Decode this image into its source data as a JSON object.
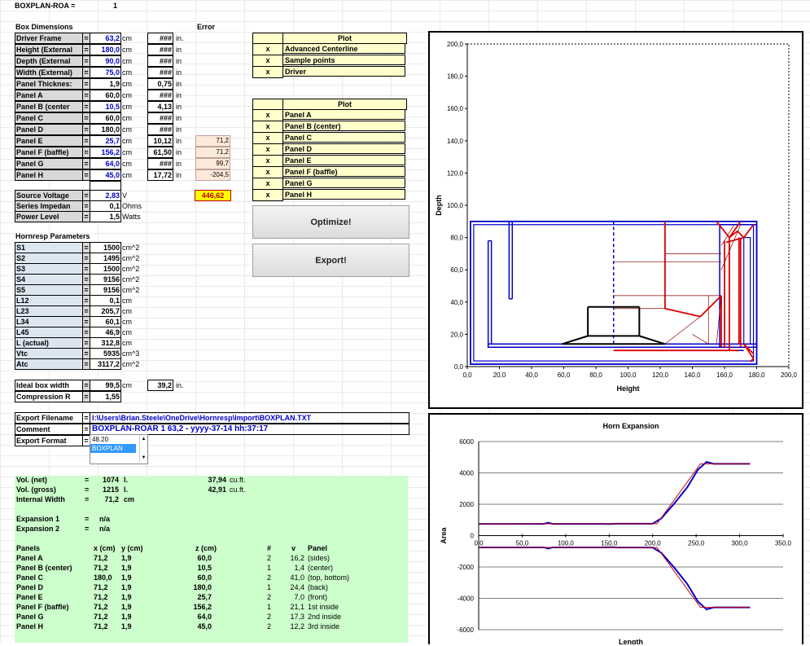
{
  "top": {
    "label": "BOXPLAN-ROA =",
    "value": "1"
  },
  "box_dims_title": "Box Dimensions",
  "error_title": "Error",
  "rows": [
    {
      "label": "Driver Frame",
      "value": "63,2",
      "unit": "cm",
      "err": "###",
      "unit2": "in.",
      "pink": ""
    },
    {
      "label": "Height (External",
      "value": "180,0",
      "unit": "cm",
      "err": "###",
      "unit2": "in",
      "pink": ""
    },
    {
      "label": "Depth (External",
      "value": "90,0",
      "unit": "cm",
      "err": "###",
      "unit2": "in",
      "pink": ""
    },
    {
      "label": "Width (External)",
      "value": "75,0",
      "unit": "cm",
      "err": "###",
      "unit2": "in",
      "pink": ""
    },
    {
      "label": "Panel Thicknes:",
      "value": "1,9",
      "unit": "cm",
      "err": "0,75",
      "unit2": "in",
      "pink": ""
    },
    {
      "label": "Panel A",
      "value": "60,0",
      "unit": "cm",
      "err": "###",
      "unit2": "in",
      "pink": ""
    },
    {
      "label": "Panel B (center",
      "value": "10,5",
      "unit": "cm",
      "err": "4,13",
      "unit2": "in",
      "pink": ""
    },
    {
      "label": "Panel C",
      "value": "60,0",
      "unit": "cm",
      "err": "###",
      "unit2": "in",
      "pink": ""
    },
    {
      "label": "Panel D",
      "value": "180,0",
      "unit": "cm",
      "err": "###",
      "unit2": "in",
      "pink": ""
    },
    {
      "label": "Panel E",
      "value": "25,7",
      "unit": "cm",
      "err": "10,12",
      "unit2": "in",
      "pink": "71,2"
    },
    {
      "label": "Panel F (baffle)",
      "value": "156,2",
      "unit": "cm",
      "err": "61,50",
      "unit2": "in",
      "pink": "71,2"
    },
    {
      "label": "Panel G",
      "value": "64,0",
      "unit": "cm",
      "err": "###",
      "unit2": "in",
      "pink": "99,7"
    },
    {
      "label": "Panel H",
      "value": "45,0",
      "unit": "cm",
      "err": "17,72",
      "unit2": "in",
      "pink": "-204,5"
    }
  ],
  "blue_rows": [
    0,
    1,
    2,
    3,
    6,
    9,
    10,
    11,
    12
  ],
  "source": [
    {
      "label": "Source Voltage",
      "value": "2,83",
      "unit": "V"
    },
    {
      "label": "Series Impedan",
      "value": "0,1",
      "unit": "Ohms"
    },
    {
      "label": "Power Level",
      "value": "1,5",
      "unit": "Watts"
    }
  ],
  "error_total": "446,62",
  "hornresp_title": "Hornresp Parameters",
  "hornresp": [
    {
      "label": "S1",
      "value": "1500",
      "unit": "cm^2"
    },
    {
      "label": "S2",
      "value": "1495",
      "unit": "cm^2"
    },
    {
      "label": "S3",
      "value": "1500",
      "unit": "cm^2"
    },
    {
      "label": "S4",
      "value": "9156",
      "unit": "cm^2"
    },
    {
      "label": "S5",
      "value": "9156",
      "unit": "cm^2"
    },
    {
      "label": "L12",
      "value": "0,1",
      "unit": "cm"
    },
    {
      "label": "L23",
      "value": "205,7",
      "unit": "cm"
    },
    {
      "label": "L34",
      "value": "60,1",
      "unit": "cm"
    },
    {
      "label": "L45",
      "value": "46,9",
      "unit": "cm"
    },
    {
      "label": "L (actual)",
      "value": "312,8",
      "unit": "cm"
    },
    {
      "label": "Vtc",
      "value": "5935",
      "unit": "cm^3"
    },
    {
      "label": "Atc",
      "value": "3117,2",
      "unit": "cm^2"
    }
  ],
  "ideal": {
    "label": "Ideal box width",
    "value": "99,5",
    "unit": "cm",
    "in": "39,2",
    "in_unit": "in."
  },
  "compression": {
    "label": "Compression R",
    "value": "1,55"
  },
  "export": {
    "filename_label": "Export Filename",
    "filename": "I:\\Users\\Brian.Steele\\OneDrive\\Hornresp\\Import\\BOXPLAN.TXT",
    "comment_label": "Comment",
    "comment": "BOXPLAN-ROAR 1 63,2 - yyyy-37-14 hh:37:17",
    "format_label": "Export Format",
    "format_options": [
      "48.20",
      "BOXPLAN"
    ]
  },
  "plot1": {
    "title": "Plot",
    "items": [
      "Advanced Centerline",
      "Sample points",
      "Driver"
    ]
  },
  "plot2": {
    "title": "Plot",
    "items": [
      "Panel A",
      "Panel B (center)",
      "Panel C",
      "Panel D",
      "Panel E",
      "Panel F (baffle)",
      "Panel G",
      "Panel H"
    ]
  },
  "buttons": {
    "optimize": "Optimize!",
    "export": "Export!"
  },
  "summary": {
    "vol_net": {
      "label": "Vol. (net)",
      "eq": "=",
      "v": "1074",
      "u": "l.",
      "v2": "37,94",
      "u2": "cu.ft."
    },
    "vol_gross": {
      "label": "Vol. (gross)",
      "eq": "=",
      "v": "1215",
      "u": "l.",
      "v2": "42,91",
      "u2": "cu.ft."
    },
    "internal": {
      "label": "Internal Width",
      "eq": "=",
      "v": "71,2",
      "u": "cm"
    },
    "exp1": {
      "label": "Expansion 1",
      "eq": "=",
      "v": "n/a"
    },
    "exp2": {
      "label": "Expansion 2",
      "eq": "=",
      "v": "n/a"
    },
    "headers": [
      "Panels",
      "x (cm)",
      "y (cm)",
      "z (cm)",
      "#",
      "v",
      "Panel"
    ],
    "panels": [
      [
        "Panel A",
        "71,2",
        "1,9",
        "60,0",
        "2",
        "16,2",
        "(sides)"
      ],
      [
        "Panel B (center)",
        "71,2",
        "1,9",
        "10,5",
        "1",
        "1,4",
        "(center)"
      ],
      [
        "Panel C",
        "180,0",
        "1,9",
        "60,0",
        "2",
        "41,0",
        "(top, bottom)"
      ],
      [
        "Panel D",
        "71,2",
        "1,9",
        "180,0",
        "1",
        "24,4",
        "(back)"
      ],
      [
        "Panel E",
        "71,2",
        "1,9",
        "25,7",
        "2",
        "7,0",
        "(front)"
      ],
      [
        "Panel F (baffle)",
        "71,2",
        "1,9",
        "156,2",
        "1",
        "21,1",
        "1st inside"
      ],
      [
        "Panel G",
        "71,2",
        "1,9",
        "64,0",
        "2",
        "17,3",
        "2nd inside"
      ],
      [
        "Panel H",
        "71,2",
        "1,9",
        "45,0",
        "2",
        "12,2",
        "3rd inside"
      ]
    ]
  },
  "chart_data": [
    {
      "type": "line",
      "title": "",
      "xlabel": "Height",
      "ylabel": "Depth",
      "xlim": [
        0,
        200
      ],
      "ylim": [
        0,
        200
      ],
      "xticks": [
        "0,0",
        "20,0",
        "40,0",
        "60,0",
        "80,0",
        "100,0",
        "120,0",
        "140,0",
        "160,0",
        "180,0",
        "200,0"
      ],
      "yticks": [
        "0,0",
        "20,0",
        "40,0",
        "60,0",
        "80,0",
        "100,0",
        "120,0",
        "140,0",
        "160,0",
        "180,0",
        "200,0"
      ],
      "series": []
    },
    {
      "type": "line",
      "title": "Horn Expansion",
      "xlabel": "Length",
      "ylabel": "Area",
      "xlim": [
        0,
        350
      ],
      "ylim": [
        -6000,
        6000
      ],
      "xticks": [
        "0,0",
        "50,0",
        "100,0",
        "150,0",
        "200,0",
        "250,0",
        "300,0",
        "350,0"
      ],
      "yticks": [
        "6000",
        "4000",
        "2000",
        "0",
        "-2000",
        "-4000",
        "-6000"
      ],
      "series": [
        {
          "color": "#0000cc",
          "x": [
            0,
            75,
            80,
            85,
            140,
            150,
            160,
            200,
            210,
            225,
            240,
            252,
            262,
            270,
            312
          ],
          "y": [
            750,
            750,
            820,
            750,
            750,
            740,
            760,
            760,
            1100,
            2050,
            3100,
            4200,
            4700,
            4580,
            4580
          ]
        },
        {
          "color": "#cc0000",
          "x": [
            0,
            205,
            255,
            265,
            312
          ],
          "y": [
            750,
            760,
            4580,
            4580,
            4580
          ]
        }
      ]
    }
  ],
  "colors": {
    "blue": "#0000cc",
    "red": "#dd0000",
    "yellow": "#ffffcc",
    "green": "#ccffcc"
  }
}
